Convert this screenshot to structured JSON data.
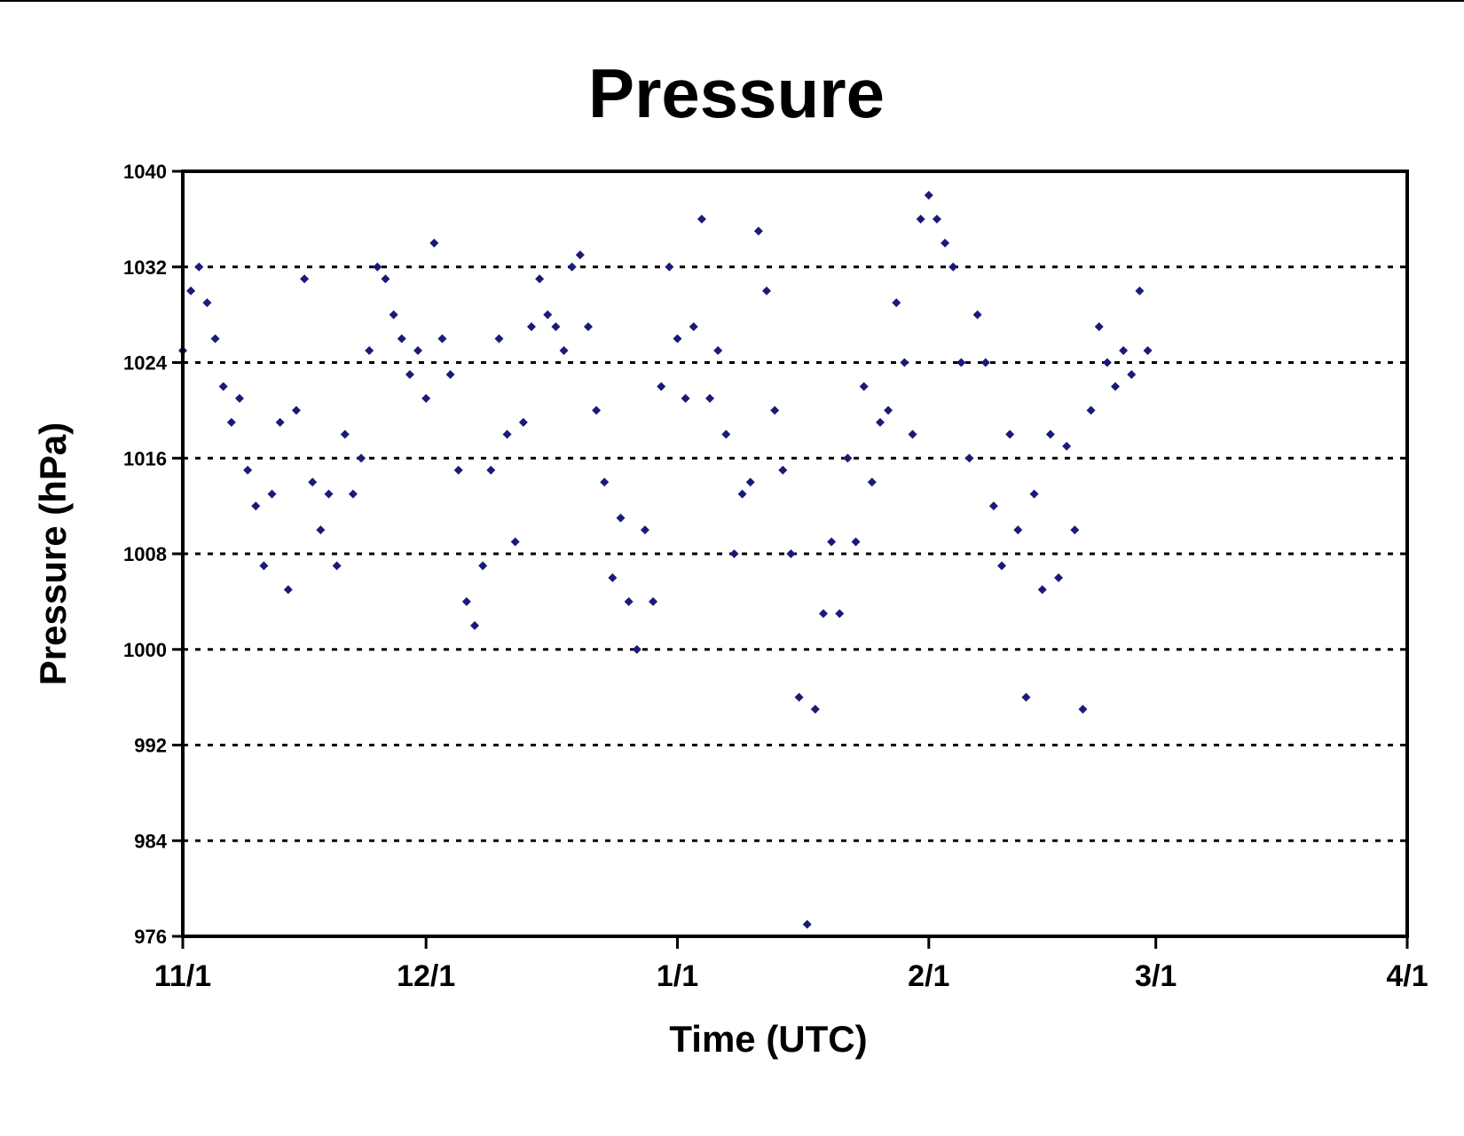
{
  "chart_data": {
    "type": "scatter",
    "title": "Pressure",
    "xlabel": "Time (UTC)",
    "ylabel": "Pressure (hPa)",
    "x_axis_type": "date",
    "xlim": [
      "11/1",
      "4/1"
    ],
    "x_ticks": [
      {
        "label": "11/1",
        "date": "2000-11-01"
      },
      {
        "label": "12/1",
        "date": "2000-12-01"
      },
      {
        "label": "1/1",
        "date": "2001-01-01"
      },
      {
        "label": "2/1",
        "date": "2001-02-01"
      },
      {
        "label": "3/1",
        "date": "2001-03-01"
      },
      {
        "label": "4/1",
        "date": "2001-04-01"
      }
    ],
    "ylim": [
      976,
      1040
    ],
    "y_ticks": [
      976,
      984,
      992,
      1000,
      1008,
      1016,
      1024,
      1032,
      1040
    ],
    "grid": {
      "horizontal": "dotted",
      "vertical": false
    },
    "marker": "diamond",
    "color": "#1a1a7a",
    "series": [
      {
        "points": [
          [
            "11/1",
            1025
          ],
          [
            "11/2",
            1030
          ],
          [
            "11/3",
            1032
          ],
          [
            "11/4",
            1029
          ],
          [
            "11/5",
            1026
          ],
          [
            "11/6",
            1022
          ],
          [
            "11/7",
            1019
          ],
          [
            "11/8",
            1021
          ],
          [
            "11/9",
            1015
          ],
          [
            "11/10",
            1012
          ],
          [
            "11/11",
            1007
          ],
          [
            "11/12",
            1013
          ],
          [
            "11/13",
            1019
          ],
          [
            "11/14",
            1005
          ],
          [
            "11/15",
            1020
          ],
          [
            "11/16",
            1031
          ],
          [
            "11/17",
            1014
          ],
          [
            "11/18",
            1010
          ],
          [
            "11/19",
            1013
          ],
          [
            "11/20",
            1007
          ],
          [
            "11/21",
            1018
          ],
          [
            "11/22",
            1013
          ],
          [
            "11/23",
            1016
          ],
          [
            "11/24",
            1025
          ],
          [
            "11/25",
            1032
          ],
          [
            "11/26",
            1031
          ],
          [
            "11/27",
            1028
          ],
          [
            "11/28",
            1026
          ],
          [
            "11/29",
            1023
          ],
          [
            "11/30",
            1025
          ],
          [
            "12/1",
            1021
          ],
          [
            "12/2",
            1034
          ],
          [
            "12/3",
            1026
          ],
          [
            "12/4",
            1023
          ],
          [
            "12/5",
            1015
          ],
          [
            "12/6",
            1004
          ],
          [
            "12/7",
            1002
          ],
          [
            "12/8",
            1007
          ],
          [
            "12/9",
            1015
          ],
          [
            "12/10",
            1026
          ],
          [
            "12/11",
            1018
          ],
          [
            "12/12",
            1009
          ],
          [
            "12/13",
            1019
          ],
          [
            "12/14",
            1027
          ],
          [
            "12/15",
            1031
          ],
          [
            "12/16",
            1028
          ],
          [
            "12/17",
            1027
          ],
          [
            "12/18",
            1025
          ],
          [
            "12/19",
            1032
          ],
          [
            "12/20",
            1033
          ],
          [
            "12/21",
            1027
          ],
          [
            "12/22",
            1020
          ],
          [
            "12/23",
            1014
          ],
          [
            "12/24",
            1006
          ],
          [
            "12/25",
            1011
          ],
          [
            "12/26",
            1004
          ],
          [
            "12/27",
            1000
          ],
          [
            "12/28",
            1010
          ],
          [
            "12/29",
            1004
          ],
          [
            "12/30",
            1022
          ],
          [
            "12/31",
            1032
          ],
          [
            "1/1",
            1026
          ],
          [
            "1/2",
            1021
          ],
          [
            "1/3",
            1027
          ],
          [
            "1/4",
            1036
          ],
          [
            "1/5",
            1021
          ],
          [
            "1/6",
            1025
          ],
          [
            "1/7",
            1018
          ],
          [
            "1/8",
            1008
          ],
          [
            "1/9",
            1013
          ],
          [
            "1/10",
            1014
          ],
          [
            "1/11",
            1035
          ],
          [
            "1/12",
            1030
          ],
          [
            "1/13",
            1020
          ],
          [
            "1/14",
            1015
          ],
          [
            "1/15",
            1008
          ],
          [
            "1/16",
            996
          ],
          [
            "1/17",
            977
          ],
          [
            "1/18",
            995
          ],
          [
            "1/19",
            1003
          ],
          [
            "1/20",
            1009
          ],
          [
            "1/21",
            1003
          ],
          [
            "1/22",
            1016
          ],
          [
            "1/23",
            1009
          ],
          [
            "1/24",
            1022
          ],
          [
            "1/25",
            1014
          ],
          [
            "1/26",
            1019
          ],
          [
            "1/27",
            1020
          ],
          [
            "1/28",
            1029
          ],
          [
            "1/29",
            1024
          ],
          [
            "1/30",
            1018
          ],
          [
            "1/31",
            1036
          ],
          [
            "2/1",
            1038
          ],
          [
            "2/2",
            1036
          ],
          [
            "2/3",
            1034
          ],
          [
            "2/4",
            1032
          ],
          [
            "2/5",
            1024
          ],
          [
            "2/6",
            1016
          ],
          [
            "2/7",
            1028
          ],
          [
            "2/8",
            1024
          ],
          [
            "2/9",
            1012
          ],
          [
            "2/10",
            1007
          ],
          [
            "2/11",
            1018
          ],
          [
            "2/12",
            1010
          ],
          [
            "2/13",
            996
          ],
          [
            "2/14",
            1013
          ],
          [
            "2/15",
            1005
          ],
          [
            "2/16",
            1018
          ],
          [
            "2/17",
            1006
          ],
          [
            "2/18",
            1017
          ],
          [
            "2/19",
            1010
          ],
          [
            "2/20",
            995
          ],
          [
            "2/21",
            1020
          ],
          [
            "2/22",
            1027
          ],
          [
            "2/23",
            1024
          ],
          [
            "2/24",
            1022
          ],
          [
            "2/25",
            1025
          ],
          [
            "2/26",
            1023
          ],
          [
            "2/27",
            1030
          ],
          [
            "2/28",
            1025
          ]
        ]
      }
    ]
  }
}
